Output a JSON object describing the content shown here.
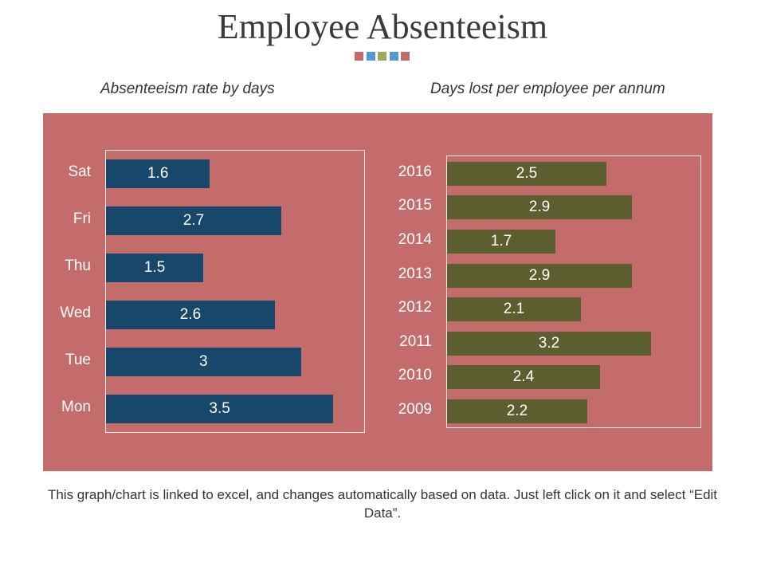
{
  "title": "Employee Absenteeism",
  "decor_dot_colors": [
    "#c46c6b",
    "#4f9ad3",
    "#9aab5e",
    "#4f9ad3",
    "#c46c6b"
  ],
  "panel_color": "#c46c6b",
  "footnote": "This graph/chart is linked to excel, and changes automatically based on data. Just left click on it and select “Edit Data”.",
  "chart_data": [
    {
      "type": "bar",
      "orientation": "horizontal",
      "title": "Absenteeism rate by days",
      "categories": [
        "Mon",
        "Tue",
        "Wed",
        "Thu",
        "Fri",
        "Sat"
      ],
      "values": [
        3.5,
        3,
        2.6,
        1.5,
        2.7,
        1.6
      ],
      "value_labels": [
        "3.5",
        "3",
        "2.6",
        "1.5",
        "2.7",
        "1.6"
      ],
      "xlim": [
        0,
        4
      ],
      "color": "#17476b",
      "grid": false,
      "axes_ticks_shown": false
    },
    {
      "type": "bar",
      "orientation": "horizontal",
      "title": "Days lost per employee per annum",
      "categories": [
        "2009",
        "2010",
        "2011",
        "2012",
        "2013",
        "2014",
        "2015",
        "2016"
      ],
      "values": [
        2.2,
        2.4,
        3.2,
        2.1,
        2.9,
        1.7,
        2.9,
        2.5
      ],
      "value_labels": [
        "2.2",
        "2.4",
        "3.2",
        "2.1",
        "2.9",
        "1.7",
        "2.9",
        "2.5"
      ],
      "xlim": [
        0,
        4
      ],
      "color": "#5d5e2f",
      "grid": false,
      "axes_ticks_shown": false
    }
  ]
}
